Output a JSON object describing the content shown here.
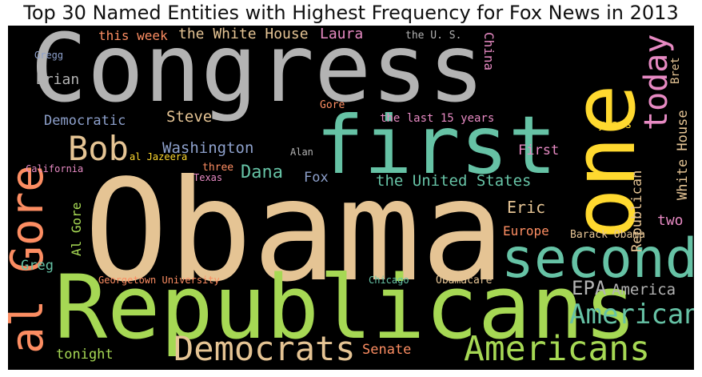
{
  "title": "Top 30 Named Entities with Highest Frequency for Fox News in 2013",
  "colors": {
    "gray": "#b3b3b3",
    "tan": "#e5c494",
    "green": "#a6d854",
    "teal": "#66c2a5",
    "orange": "#fc8d62",
    "blue": "#8da0cb",
    "pink": "#e78ac3",
    "yellow": "#ffd92f"
  },
  "words": {
    "congress": "Congress",
    "obama": "Obama",
    "one": "one",
    "first": "first",
    "republicans": "Republicans",
    "second": "second",
    "al_gore_big": "al Gore",
    "democrats": "Democrats",
    "americans": "Americans",
    "bob": "Bob",
    "today": "today",
    "american": "American",
    "the_white_house": "the White House",
    "laura": "Laura",
    "this_week": "this week",
    "the_u_s": "the U. S.",
    "brian": "Brian",
    "gregg": "Gregg",
    "china": "China",
    "bret": "Bret",
    "democratic": "Democratic",
    "steve": "Steve",
    "gore": "Gore",
    "the_last_15_years": "the last 15 years",
    "years": "years",
    "white_house": "White House",
    "washington": "Washington",
    "alan": "Alan",
    "first_small": "First",
    "al_jazeera": "al Jazeera",
    "california": "California",
    "dana": "Dana",
    "fox": "Fox",
    "three": "three",
    "texas": "Texas",
    "the_united_states": "the United States",
    "republican": "Republican",
    "al_gore_small": "Al Gore",
    "eric": "Eric",
    "two": "two",
    "europe": "Europe",
    "barack_obama": "Barack Obama",
    "greg": "Greg",
    "georgetown_university": "Georgetown University",
    "chicago": "Chicago",
    "obamacare": "Obamacare",
    "epa": "EPA",
    "america": "America",
    "tonight": "tonight",
    "senate": "Senate"
  }
}
